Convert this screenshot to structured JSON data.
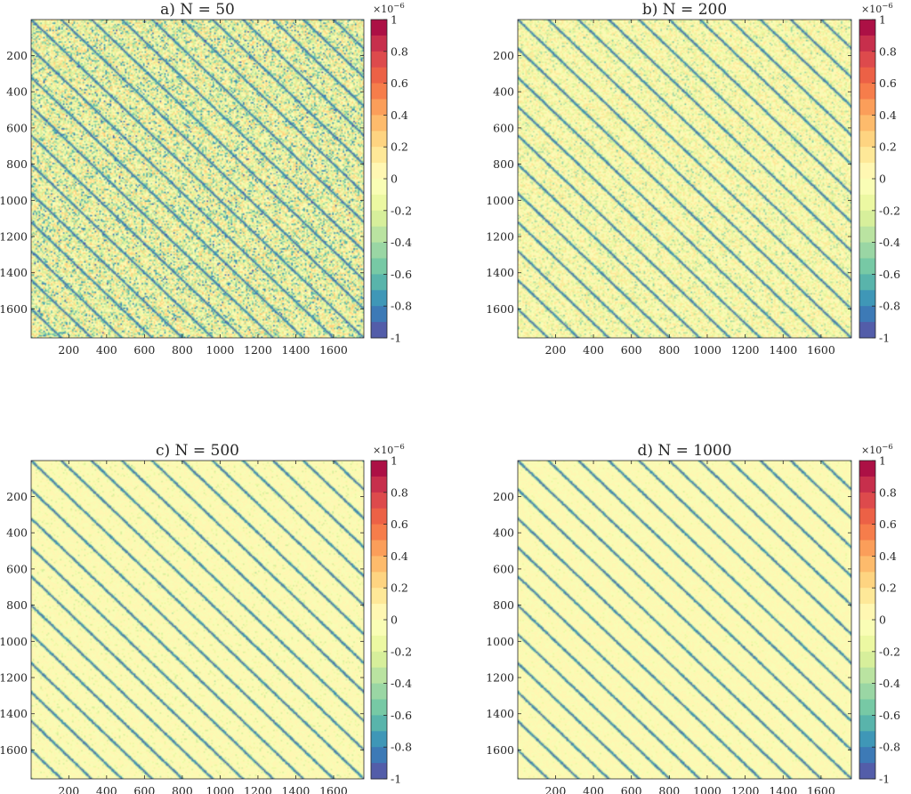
{
  "chart_data": [
    {
      "type": "heatmap",
      "title": "a) N = 50",
      "xticks": [
        200,
        400,
        600,
        800,
        1000,
        1200,
        1400,
        1600
      ],
      "yticks": [
        200,
        400,
        600,
        800,
        1000,
        1200,
        1400,
        1600
      ],
      "xlim": [
        1,
        1760
      ],
      "ylim": [
        1,
        1760
      ],
      "y_direction": "reversed",
      "band_spacing": 160,
      "band_value": -1,
      "noise_level": 0.55,
      "colorbar": {
        "ticks": [
          "1",
          "0.8",
          "0.6",
          "0.4",
          "0.2",
          "0",
          "-0.2",
          "-0.4",
          "-0.6",
          "-0.8",
          "-1"
        ],
        "exponent": "×10",
        "exponent_power": "−6",
        "range": [
          -1,
          1
        ]
      }
    },
    {
      "type": "heatmap",
      "title": "b) N = 200",
      "xticks": [
        200,
        400,
        600,
        800,
        1000,
        1200,
        1400,
        1600
      ],
      "yticks": [
        200,
        400,
        600,
        800,
        1000,
        1200,
        1400,
        1600
      ],
      "xlim": [
        1,
        1760
      ],
      "ylim": [
        1,
        1760
      ],
      "y_direction": "reversed",
      "band_spacing": 160,
      "band_value": -1,
      "noise_level": 0.32,
      "colorbar": {
        "ticks": [
          "1",
          "0.8",
          "0.6",
          "0.4",
          "0.2",
          "0",
          "-0.2",
          "-0.4",
          "-0.6",
          "-0.8",
          "-1"
        ],
        "exponent": "×10",
        "exponent_power": "−6",
        "range": [
          -1,
          1
        ]
      }
    },
    {
      "type": "heatmap",
      "title": "c) N = 500",
      "xticks": [
        200,
        400,
        600,
        800,
        1000,
        1200,
        1400,
        1600
      ],
      "yticks": [
        200,
        400,
        600,
        800,
        1000,
        1200,
        1400,
        1600
      ],
      "xlim": [
        1,
        1760
      ],
      "ylim": [
        1,
        1760
      ],
      "y_direction": "reversed",
      "band_spacing": 160,
      "band_value": -1,
      "noise_level": 0.18,
      "colorbar": {
        "ticks": [
          "1",
          "0.8",
          "0.6",
          "0.4",
          "0.2",
          "0",
          "-0.2",
          "-0.4",
          "-0.6",
          "-0.8",
          "-1"
        ],
        "exponent": "×10",
        "exponent_power": "−6",
        "range": [
          -1,
          1
        ]
      }
    },
    {
      "type": "heatmap",
      "title": "d) N = 1000",
      "xticks": [
        200,
        400,
        600,
        800,
        1000,
        1200,
        1400,
        1600
      ],
      "yticks": [
        200,
        400,
        600,
        800,
        1000,
        1200,
        1400,
        1600
      ],
      "xlim": [
        1,
        1760
      ],
      "ylim": [
        1,
        1760
      ],
      "y_direction": "reversed",
      "band_spacing": 160,
      "band_value": -1,
      "noise_level": 0.12,
      "colorbar": {
        "ticks": [
          "1",
          "0.8",
          "0.6",
          "0.4",
          "0.2",
          "0",
          "-0.2",
          "-0.4",
          "-0.6",
          "-0.8",
          "-1"
        ],
        "exponent": "×10",
        "exponent_power": "−6",
        "range": [
          -1,
          1
        ]
      }
    }
  ],
  "colormap": [
    "#5e4fa2",
    "#3288bd",
    "#66c2a5",
    "#abdda4",
    "#e6f598",
    "#ffffbf",
    "#fee08b",
    "#fdae61",
    "#f46d43",
    "#d53e4f",
    "#9e0142"
  ]
}
